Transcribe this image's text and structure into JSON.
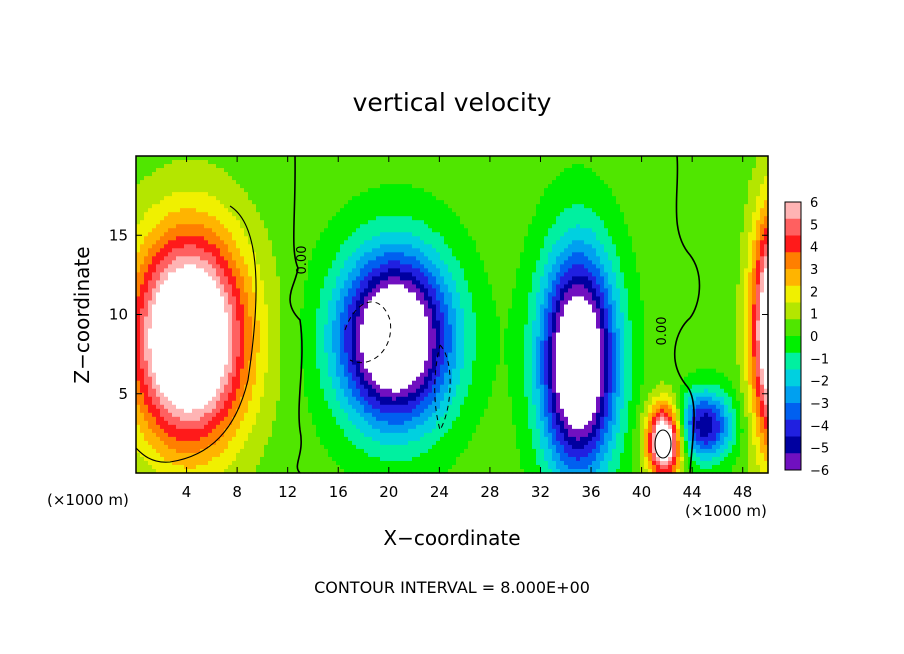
{
  "chart_data": {
    "type": "heatmap",
    "title": "vertical velocity",
    "xlabel": "X−coordinate",
    "ylabel": "Z−coordinate",
    "x_multiplier_label": "(×1000 m)",
    "z_multiplier_label": "(×1000 m)",
    "x_range": [
      0,
      50
    ],
    "z_range": [
      0,
      20
    ],
    "x_ticks": [
      "4",
      "8",
      "12",
      "16",
      "20",
      "24",
      "28",
      "32",
      "36",
      "40",
      "44",
      "48"
    ],
    "z_ticks": [
      "5",
      "10",
      "15"
    ],
    "colorbar": {
      "range": [
        -6,
        6
      ],
      "labels": [
        "6",
        "5",
        "4",
        "3",
        "2",
        "1",
        "0",
        "−1",
        "−2",
        "−3",
        "−4",
        "−5",
        "−6"
      ],
      "colors": [
        "#ffb4b4",
        "#ff6060",
        "#ff1a1a",
        "#ff7f00",
        "#ffb400",
        "#f0f000",
        "#b4e600",
        "#50e600",
        "#00f000",
        "#00f0a0",
        "#00d0e0",
        "#00a0f0",
        "#0060f0",
        "#2020e0",
        "#0000a0",
        "#7010c0"
      ]
    },
    "regions": [
      {
        "name": "left updraft core",
        "x": 4.2,
        "z": 8.5,
        "rx": 4.6,
        "rz": 6.8,
        "value": 7
      },
      {
        "name": "right edge updraft",
        "x": 50.5,
        "z": 9,
        "rx": 1.8,
        "rz": 7.5,
        "value": 6.5
      },
      {
        "name": "updraft near x=42",
        "x": 41.8,
        "z": 2.0,
        "rx": 1.4,
        "rz": 2.4,
        "value": 6
      },
      {
        "name": "downdraft core near x=20",
        "x": 20.5,
        "z": 8.5,
        "rx": 4.5,
        "rz": 5.5,
        "value": -7
      },
      {
        "name": "downdraft core near x=35",
        "x": 35,
        "z": 7,
        "rx": 3,
        "rz": 7,
        "value": -7
      },
      {
        "name": "downdraft near x=45",
        "x": 45,
        "z": 3,
        "rx": 2.2,
        "rz": 2.2,
        "value": -4
      }
    ],
    "contour_labels": [
      "0.00",
      "0.00"
    ],
    "contour_interval_label": "CONTOUR INTERVAL = 8.000E+00"
  }
}
